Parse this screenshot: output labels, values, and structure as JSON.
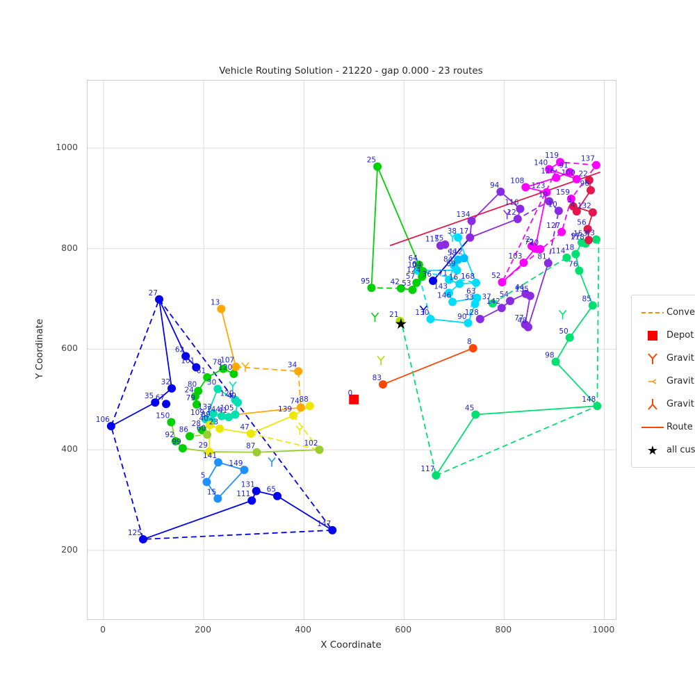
{
  "title": "Vehicle Routing Solution - 21220 - gap 0.000 - 23 routes",
  "axes": {
    "xlabel": "X Coordinate",
    "ylabel": "Y Coordinate",
    "x_ticks": [
      0,
      200,
      400,
      600,
      800,
      1000
    ],
    "y_ticks": [
      200,
      400,
      600,
      800,
      1000
    ],
    "x_range": [
      -32,
      1023
    ],
    "y_range": [
      63,
      1134
    ],
    "grid": true,
    "grid_color": "#dcdcdc"
  },
  "legend": {
    "items": [
      {
        "label": "Conve",
        "marker": "dashed-line",
        "color": "#FF8C00"
      },
      {
        "label": "Depot",
        "marker": "square",
        "color": "#FF0000"
      },
      {
        "label": "Gravit",
        "marker": "tri-down",
        "color": "#FF4500"
      },
      {
        "label": "Gravit",
        "marker": "tri-left",
        "color": "#FF8C00"
      },
      {
        "label": "Gravit",
        "marker": "tri-up",
        "color": "#FF4500"
      },
      {
        "label": "Route",
        "marker": "line",
        "color": "#FF4500"
      },
      {
        "label": "all cus",
        "marker": "star",
        "color": "#000000"
      }
    ]
  },
  "chart_data": {
    "type": "scatter",
    "objective_value": "21220",
    "gap": "0.000",
    "num_routes": 23,
    "label_color": "#2222cc",
    "palette": {
      "blue": "#0000ee",
      "dodgerblue": "#1e90ff",
      "deepskyblue": "#00bfff",
      "cyan": "#00ddff",
      "turquoise": "#00e0b0",
      "springgreen": "#00e070",
      "green": "#00d000",
      "greenyellow": "#aadd00",
      "yellowgreen": "#9acd32",
      "yellow": "#eee800",
      "orange": "#ffa800",
      "orangered": "#ff4500",
      "red": "#ff0000",
      "crimson": "#e3174b",
      "magenta": "#ff00ff",
      "blueviolet": "#8a2be2"
    },
    "depot": {
      "label": "0",
      "x": 500,
      "y": 500,
      "color": "red"
    },
    "all_customers_center": {
      "x": 594,
      "y": 650
    },
    "nodes": [
      [
        "27",
        111,
        699,
        "blue"
      ],
      [
        "62",
        164,
        586,
        "blue"
      ],
      [
        "101",
        185,
        564,
        "blue"
      ],
      [
        "32",
        136,
        522,
        "blue"
      ],
      [
        "35",
        103,
        494,
        "blue"
      ],
      [
        "67",
        125,
        491,
        "blue"
      ],
      [
        "106",
        15,
        447,
        "blue"
      ],
      [
        "125",
        79,
        222,
        "blue"
      ],
      [
        "147",
        457,
        240,
        "blue"
      ],
      [
        "65",
        347,
        308,
        "blue"
      ],
      [
        "111",
        296,
        299,
        "blue"
      ],
      [
        "131",
        305,
        318,
        "blue"
      ],
      [
        "36",
        658,
        736,
        "blue"
      ],
      [
        "5",
        206,
        336,
        "dodgerblue"
      ],
      [
        "15",
        228,
        303,
        "dodgerblue"
      ],
      [
        "141",
        229,
        375,
        "dodgerblue"
      ],
      [
        "149",
        281,
        360,
        "dodgerblue"
      ],
      [
        "130",
        653,
        660,
        "cyan"
      ],
      [
        "90",
        728,
        652,
        "cyan"
      ],
      [
        "33",
        742,
        690,
        "cyan"
      ],
      [
        "63",
        746,
        702,
        "cyan"
      ],
      [
        "146",
        697,
        694,
        "cyan"
      ],
      [
        "143",
        690,
        712,
        "cyan"
      ],
      [
        "16",
        711,
        730,
        "cyan"
      ],
      [
        "71",
        690,
        738,
        "cyan"
      ],
      [
        "168",
        744,
        732,
        "cyan"
      ],
      [
        "84",
        700,
        766,
        "cyan"
      ],
      [
        "69",
        706,
        757,
        "cyan"
      ],
      [
        "6",
        628,
        756,
        "cyan"
      ],
      [
        "38",
        708,
        822,
        "cyan"
      ],
      [
        "58",
        708,
        778,
        "deepskyblue"
      ],
      [
        "112",
        720,
        781,
        "deepskyblue"
      ],
      [
        "61",
        207,
        544,
        "green"
      ],
      [
        "80",
        189,
        517,
        "green"
      ],
      [
        "24",
        183,
        506,
        "green"
      ],
      [
        "79",
        186,
        490,
        "green"
      ],
      [
        "78",
        239,
        561,
        "green"
      ],
      [
        "120",
        260,
        551,
        "green"
      ],
      [
        "150",
        135,
        455,
        "green"
      ],
      [
        "92",
        144,
        417,
        "green"
      ],
      [
        "99",
        158,
        403,
        "green"
      ],
      [
        "86",
        172,
        427,
        "green"
      ],
      [
        "28",
        197,
        439,
        "green"
      ],
      [
        "25",
        547,
        963,
        "green"
      ],
      [
        "95",
        535,
        722,
        "green"
      ],
      [
        "42",
        594,
        721,
        "green"
      ],
      [
        "53",
        617,
        718,
        "green"
      ],
      [
        "57",
        625,
        732,
        "green"
      ],
      [
        "64",
        630,
        768,
        "green"
      ],
      [
        "104",
        638,
        755,
        "green"
      ],
      [
        "124",
        636,
        744,
        "green"
      ],
      [
        "21",
        592,
        656,
        "greenyellow"
      ],
      [
        "30",
        228,
        521,
        "turquoise"
      ],
      [
        "129",
        263,
        499,
        "turquoise"
      ],
      [
        "49",
        268,
        494,
        "turquoise"
      ],
      [
        "109",
        204,
        461,
        "turquoise"
      ],
      [
        "89",
        216,
        457,
        "turquoise"
      ],
      [
        "133",
        219,
        472,
        "turquoise"
      ],
      [
        "144",
        236,
        467,
        "turquoise"
      ],
      [
        "41",
        250,
        465,
        "turquoise"
      ],
      [
        "105",
        263,
        470,
        "turquoise"
      ],
      [
        "29",
        211,
        396,
        "yellow"
      ],
      [
        "47",
        294,
        432,
        "yellow"
      ],
      [
        "23",
        232,
        442,
        "yellow"
      ],
      [
        "40",
        212,
        449,
        "yellow"
      ],
      [
        "88",
        412,
        487,
        "yellow"
      ],
      [
        "139",
        379,
        468,
        "yellow"
      ],
      [
        "60",
        207,
        430,
        "yellowgreen"
      ],
      [
        "87",
        306,
        395,
        "yellowgreen"
      ],
      [
        "102",
        431,
        400,
        "yellowgreen"
      ],
      [
        "13",
        235,
        680,
        "orange"
      ],
      [
        "107",
        264,
        565,
        "orange"
      ],
      [
        "34",
        389,
        556,
        "orange"
      ],
      [
        "74",
        394,
        484,
        "orange"
      ],
      [
        "83",
        558,
        530,
        "orangered"
      ],
      [
        "8",
        738,
        602,
        "orangered"
      ],
      [
        "117",
        664,
        349,
        "springgreen"
      ],
      [
        "45",
        743,
        470,
        "springgreen"
      ],
      [
        "148",
        986,
        487,
        "springgreen"
      ],
      [
        "98",
        903,
        575,
        "springgreen"
      ],
      [
        "50",
        931,
        623,
        "springgreen"
      ],
      [
        "85",
        977,
        687,
        "springgreen"
      ],
      [
        "76",
        950,
        756,
        "springgreen"
      ],
      [
        "114",
        925,
        782,
        "springgreen"
      ],
      [
        "18",
        943,
        789,
        "springgreen"
      ],
      [
        "97",
        955,
        812,
        "springgreen"
      ],
      [
        "118",
        963,
        810,
        "springgreen"
      ],
      [
        "43",
        984,
        818,
        "springgreen"
      ],
      [
        "37",
        777,
        691,
        "springgreen"
      ],
      [
        "134",
        735,
        855,
        "blueviolet"
      ],
      [
        "17",
        732,
        822,
        "blueviolet"
      ],
      [
        "94",
        793,
        913,
        "blueviolet"
      ],
      [
        "12",
        827,
        859,
        "blueviolet"
      ],
      [
        "116",
        832,
        879,
        "blueviolet"
      ],
      [
        "10",
        909,
        875,
        "blueviolet"
      ],
      [
        "19",
        890,
        894,
        "blueviolet"
      ],
      [
        "115",
        673,
        806,
        "blueviolet"
      ],
      [
        "75",
        682,
        808,
        "blueviolet"
      ],
      [
        "81",
        888,
        771,
        "blueviolet"
      ],
      [
        "54",
        812,
        696,
        "blueviolet"
      ],
      [
        "142",
        795,
        682,
        "blueviolet"
      ],
      [
        "44",
        843,
        710,
        "blueviolet"
      ],
      [
        "135",
        852,
        706,
        "blueviolet"
      ],
      [
        "128",
        752,
        660,
        "blueviolet"
      ],
      [
        "77",
        842,
        649,
        "blueviolet"
      ],
      [
        "48",
        848,
        644,
        "blueviolet"
      ],
      [
        "108",
        843,
        922,
        "magenta"
      ],
      [
        "123",
        885,
        912,
        "magenta"
      ],
      [
        "126",
        904,
        941,
        "magenta"
      ],
      [
        "91",
        931,
        952,
        "magenta"
      ],
      [
        "100",
        945,
        938,
        "magenta"
      ],
      [
        "140",
        890,
        958,
        "magenta"
      ],
      [
        "119",
        912,
        972,
        "magenta"
      ],
      [
        "137",
        984,
        966,
        "magenta"
      ],
      [
        "159",
        934,
        899,
        "magenta"
      ],
      [
        "52",
        796,
        733,
        "magenta"
      ],
      [
        "103",
        839,
        772,
        "magenta"
      ],
      [
        "127",
        915,
        833,
        "magenta"
      ],
      [
        "72",
        862,
        800,
        "magenta"
      ],
      [
        "20",
        872,
        799,
        "magenta"
      ],
      [
        "2",
        855,
        805,
        "magenta"
      ],
      [
        "22",
        970,
        936,
        "crimson"
      ],
      [
        "96",
        973,
        916,
        "crimson"
      ],
      [
        "3",
        938,
        884,
        "crimson"
      ],
      [
        "4",
        945,
        874,
        "crimson"
      ],
      [
        "132",
        977,
        872,
        "crimson"
      ],
      [
        "56",
        967,
        839,
        "crimson"
      ],
      [
        "153",
        969,
        817,
        "crimson"
      ]
    ],
    "routes": [
      {
        "color": "blue",
        "style": "solid",
        "nodes": [
          "27",
          "62",
          "101"
        ]
      },
      {
        "color": "blue",
        "style": "solid",
        "nodes": [
          "27",
          "32",
          "35",
          "106"
        ]
      },
      {
        "color": "blue",
        "style": "solid",
        "nodes": [
          "125",
          "111",
          "131",
          "65",
          "147"
        ]
      },
      {
        "color": "blue",
        "style": "dashed",
        "nodes": [
          "27",
          "147",
          "125",
          "106",
          "27"
        ]
      },
      {
        "color": "blue",
        "style": "solid",
        "nodes": [
          "36",
          "17"
        ]
      },
      {
        "color": "dodgerblue",
        "style": "solid",
        "nodes": [
          "141",
          "149",
          "15",
          "5",
          "141"
        ]
      },
      {
        "color": "green",
        "style": "solid",
        "nodes": [
          "120",
          "78",
          "61",
          "80",
          "24",
          "79"
        ]
      },
      {
        "color": "yellowgreen",
        "style": "solid",
        "nodes": [
          "150",
          "92",
          "99",
          "29",
          "87",
          "102"
        ]
      },
      {
        "color": "yellowgreen",
        "style": "dashed",
        "nodes": [
          "86",
          "40",
          "28",
          "60",
          "86"
        ]
      },
      {
        "color": "turquoise",
        "style": "solid",
        "nodes": [
          "30",
          "129",
          "49",
          "105",
          "41",
          "144",
          "133",
          "89",
          "109",
          "30"
        ]
      },
      {
        "color": "yellow",
        "style": "solid",
        "nodes": [
          "88",
          "139",
          "47",
          "23",
          "40",
          "29"
        ]
      },
      {
        "color": "yellow",
        "style": "dashed",
        "nodes": [
          "139",
          "102",
          "47"
        ]
      },
      {
        "color": "orange",
        "style": "solid",
        "nodes": [
          "13",
          "107"
        ]
      },
      {
        "color": "orange",
        "style": "dashed",
        "nodes": [
          "107",
          "34",
          "74"
        ]
      },
      {
        "color": "green",
        "style": "solid",
        "nodes": [
          "95",
          "25",
          "64",
          "104",
          "124",
          "57",
          "53",
          "42"
        ]
      },
      {
        "color": "green",
        "style": "dashed",
        "nodes": [
          "42",
          "95"
        ]
      },
      {
        "color": "orangered",
        "style": "solid",
        "nodes": [
          "83",
          "8"
        ]
      },
      {
        "color": "springgreen",
        "style": "solid",
        "nodes": [
          "117",
          "45",
          "148",
          "98",
          "50",
          "85",
          "76",
          "18",
          "97",
          "118",
          "43"
        ]
      },
      {
        "color": "springgreen",
        "style": "dashed",
        "nodes": [
          "37",
          "114"
        ]
      },
      {
        "color": "blueviolet",
        "style": "solid",
        "nodes": [
          "134",
          "17",
          "12",
          "116",
          "94",
          "134"
        ]
      },
      {
        "color": "blueviolet",
        "style": "solid",
        "nodes": [
          "115",
          "75"
        ]
      },
      {
        "color": "blueviolet",
        "style": "solid",
        "nodes": [
          "128",
          "142",
          "54",
          "44",
          "135",
          "77",
          "48",
          "81"
        ]
      },
      {
        "color": "blueviolet",
        "style": "dashed",
        "nodes": [
          "81",
          "10",
          "19",
          "12"
        ]
      },
      {
        "color": "magenta",
        "style": "solid",
        "nodes": [
          "52",
          "103",
          "72",
          "123",
          "108",
          "126",
          "91",
          "100",
          "140",
          "119"
        ]
      },
      {
        "color": "magenta",
        "style": "dashed",
        "nodes": [
          "52",
          "127",
          "159",
          "137",
          "119",
          "52"
        ]
      },
      {
        "color": "magenta",
        "style": "solid",
        "nodes": [
          "2",
          "20",
          "72"
        ]
      },
      {
        "color": "crimson",
        "style": "solid",
        "nodes": [
          "22",
          "96",
          "4",
          "3",
          "132",
          "56",
          "153"
        ]
      },
      {
        "color": "cyan",
        "style": "solid",
        "nodes": [
          "130",
          "90",
          "33",
          "63",
          "146",
          "143",
          "16",
          "71",
          "84",
          "69",
          "6"
        ]
      },
      {
        "color": "cyan",
        "style": "solid",
        "nodes": [
          "16",
          "168",
          "38"
        ]
      },
      {
        "color": "cyan",
        "style": "dashed",
        "nodes": [
          "130",
          "90",
          "168",
          "6",
          "130"
        ]
      },
      {
        "color": "deepskyblue",
        "style": "solid",
        "nodes": [
          "58",
          "112"
        ]
      }
    ],
    "segments": [
      {
        "color": "orange",
        "style": "solid",
        "points": [
          [
            265,
            470
          ],
          [
            394,
            484
          ]
        ]
      },
      {
        "color": "crimson",
        "style": "solid",
        "points": [
          [
            572,
            806
          ],
          [
            992,
            952
          ]
        ]
      },
      {
        "color": "springgreen",
        "style": "dashed",
        "points": [
          [
            989,
            820
          ],
          [
            986,
            487
          ]
        ]
      },
      {
        "color": "springgreen",
        "style": "dashed",
        "points": [
          [
            593,
            662
          ],
          [
            664,
            349
          ]
        ]
      },
      {
        "color": "springgreen",
        "style": "dashed",
        "points": [
          [
            664,
            349
          ],
          [
            986,
            487
          ]
        ]
      }
    ],
    "gravity_centers": [
      {
        "x": 639,
        "y": 678,
        "color": "blue"
      },
      {
        "x": 554,
        "y": 578,
        "color": "greenyellow"
      },
      {
        "x": 542,
        "y": 664,
        "color": "green"
      },
      {
        "x": 283,
        "y": 565,
        "color": "orange"
      },
      {
        "x": 336,
        "y": 376,
        "color": "dodgerblue"
      },
      {
        "x": 392,
        "y": 439,
        "color": "yellow"
      },
      {
        "x": 697,
        "y": 823,
        "color": "cyan"
      },
      {
        "x": 806,
        "y": 868,
        "color": "blueviolet"
      },
      {
        "x": 917,
        "y": 669,
        "color": "springgreen"
      },
      {
        "x": 258,
        "y": 527,
        "color": "turquoise"
      }
    ]
  }
}
